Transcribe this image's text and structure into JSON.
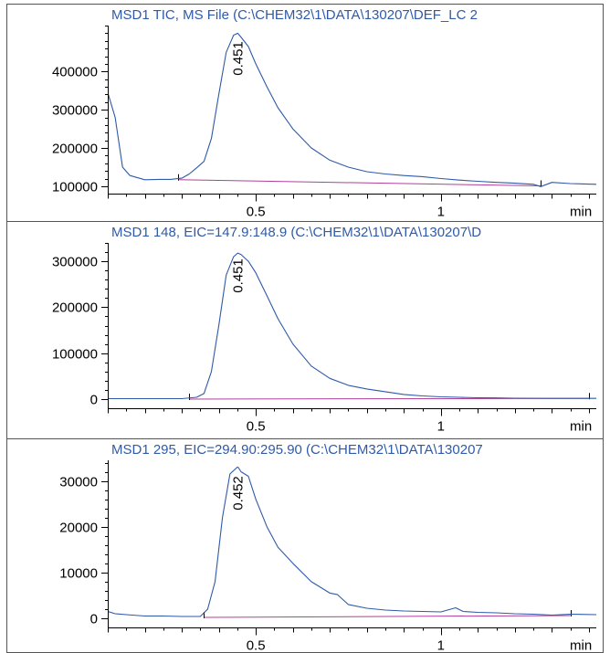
{
  "colors": {
    "signal": "#2f5aa8",
    "baseline": "#b0409a",
    "title": "#2f5aa8",
    "axis": "#000000",
    "frame": "#555555"
  },
  "chart_data": [
    {
      "type": "line",
      "title": "MSD1 TIC, MS File (C:\\CHEM32\\1\\DATA\\130207\\DEF_LC 2",
      "xlabel": "min",
      "xlim": [
        0.1,
        1.42
      ],
      "ylim": [
        95000,
        520000
      ],
      "x_ticks": [
        0.5,
        1
      ],
      "y_ticks": [
        100000,
        200000,
        300000,
        400000
      ],
      "grid": false,
      "peak": {
        "x": 0.451,
        "label": "0.451"
      },
      "baseline": {
        "x": [
          0.29,
          1.27
        ],
        "y": [
          117000,
          101000
        ]
      },
      "series": [
        {
          "x": [
            0.1,
            0.12,
            0.14,
            0.16,
            0.2,
            0.24,
            0.27,
            0.3,
            0.32,
            0.34,
            0.36,
            0.38,
            0.4,
            0.42,
            0.44,
            0.451,
            0.46,
            0.48,
            0.5,
            0.53,
            0.56,
            0.6,
            0.65,
            0.7,
            0.75,
            0.8,
            0.85,
            0.9,
            0.95,
            1.0,
            1.05,
            1.1,
            1.15,
            1.2,
            1.25,
            1.27,
            1.3,
            1.35,
            1.42
          ],
          "y": [
            345000,
            280000,
            150000,
            128000,
            117000,
            118000,
            118000,
            121000,
            132000,
            148000,
            165000,
            225000,
            340000,
            450000,
            495000,
            500000,
            490000,
            465000,
            420000,
            360000,
            305000,
            250000,
            200000,
            168000,
            150000,
            138000,
            132000,
            128000,
            125000,
            120000,
            116000,
            113000,
            110000,
            108000,
            105000,
            99000,
            110000,
            107000,
            105000
          ]
        }
      ]
    },
    {
      "type": "line",
      "title": "MSD1 148, EIC=147.9:148.9 (C:\\CHEM32\\1\\DATA\\130207\\D",
      "xlabel": "min",
      "xlim": [
        0.1,
        1.42
      ],
      "ylim": [
        -8000,
        340000
      ],
      "x_ticks": [
        0.5,
        1
      ],
      "y_ticks": [
        0,
        100000,
        200000,
        300000
      ],
      "grid": false,
      "peak": {
        "x": 0.451,
        "label": "0.451"
      },
      "baseline": {
        "x": [
          0.32,
          1.4
        ],
        "y": [
          0,
          1500
        ]
      },
      "series": [
        {
          "x": [
            0.1,
            0.2,
            0.3,
            0.34,
            0.36,
            0.38,
            0.4,
            0.42,
            0.44,
            0.451,
            0.46,
            0.48,
            0.5,
            0.53,
            0.56,
            0.6,
            0.65,
            0.7,
            0.75,
            0.8,
            0.85,
            0.9,
            0.95,
            1.0,
            1.05,
            1.1,
            1.15,
            1.2,
            1.3,
            1.42
          ],
          "y": [
            1000,
            1000,
            1000,
            4000,
            12000,
            60000,
            160000,
            270000,
            310000,
            318000,
            315000,
            300000,
            275000,
            225000,
            175000,
            120000,
            72000,
            45000,
            30000,
            22000,
            16000,
            10000,
            7000,
            5000,
            4000,
            3000,
            2500,
            2000,
            1500,
            1500
          ]
        }
      ]
    },
    {
      "type": "line",
      "title": "MSD1 295, EIC=294.90:295.90 (C:\\CHEM32\\1\\DATA\\130207",
      "xlabel": "min",
      "xlim": [
        0.1,
        1.42
      ],
      "ylim": [
        -800,
        34500
      ],
      "x_ticks": [
        0.5,
        1
      ],
      "y_ticks": [
        0,
        10000,
        20000,
        30000
      ],
      "grid": false,
      "peak": {
        "x": 0.452,
        "label": "0.452"
      },
      "baseline": {
        "x": [
          0.36,
          1.35
        ],
        "y": [
          200,
          600
        ]
      },
      "series": [
        {
          "x": [
            0.1,
            0.12,
            0.15,
            0.2,
            0.25,
            0.3,
            0.35,
            0.37,
            0.39,
            0.41,
            0.43,
            0.45,
            0.452,
            0.46,
            0.48,
            0.5,
            0.53,
            0.56,
            0.6,
            0.65,
            0.7,
            0.72,
            0.75,
            0.8,
            0.85,
            0.9,
            0.95,
            1.0,
            1.04,
            1.06,
            1.1,
            1.15,
            1.2,
            1.25,
            1.3,
            1.35,
            1.42
          ],
          "y": [
            1500,
            1000,
            800,
            500,
            500,
            400,
            400,
            2000,
            8000,
            22000,
            31500,
            33000,
            33000,
            32000,
            31000,
            26000,
            20000,
            15500,
            12000,
            8000,
            5500,
            5200,
            3000,
            2200,
            1800,
            1600,
            1500,
            1400,
            2300,
            1500,
            1300,
            1200,
            1000,
            900,
            700,
            900,
            800
          ]
        }
      ]
    }
  ]
}
